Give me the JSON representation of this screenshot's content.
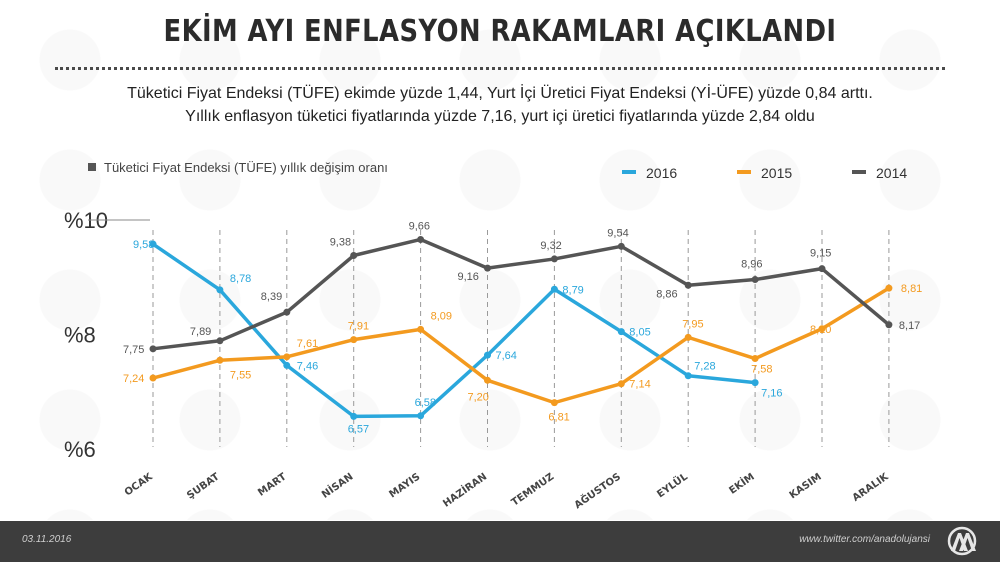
{
  "header": {
    "title": "EKİM AYI ENFLASYON RAKAMLARI AÇIKLANDI",
    "subtitle_line1": "Tüketici Fiyat Endeksi (TÜFE) ekimde yüzde 1,44, Yurt İçi Üretici Fiyat Endeksi (Yİ-ÜFE) yüzde 0,84 arttı.",
    "subtitle_line2": "Yıllık enflasyon tüketici fiyatlarında yüzde 7,16, yurt içi üretici fiyatlarında yüzde 2,84 oldu"
  },
  "footer": {
    "date": "03.11.2016",
    "url": "www.twitter.com/anadolujansi",
    "logo_icon": "aa-logo-icon"
  },
  "chart_data": {
    "type": "line",
    "title": "",
    "legend_caption": "Tüketici Fiyat Endeksi (TÜFE) yıllık değişim oranı",
    "legend_placement": "top",
    "categories": [
      "OCAK",
      "ŞUBAT",
      "MART",
      "NİSAN",
      "MAYIS",
      "HAZİRAN",
      "TEMMUZ",
      "AĞUSTOS",
      "EYLÜL",
      "EKİM",
      "KASIM",
      "ARALIK"
    ],
    "ylim": [
      6,
      10
    ],
    "yticks": [
      {
        "value": 10,
        "label": "%10"
      },
      {
        "value": 8,
        "label": "%8"
      },
      {
        "value": 6,
        "label": "%6"
      }
    ],
    "grid": "vertical-dashed",
    "series": [
      {
        "name": "2016",
        "color": "#2aa7dc",
        "values": [
          9.58,
          8.78,
          7.46,
          6.57,
          6.58,
          7.64,
          8.79,
          8.05,
          7.28,
          7.16,
          null,
          null
        ],
        "labels": [
          "9,58",
          "8,78",
          "7,46",
          "6,57",
          "6,58",
          "7,64",
          "8,79",
          "8,05",
          "7,28",
          "7,16",
          "",
          ""
        ]
      },
      {
        "name": "2015",
        "color": "#f39a1f",
        "values": [
          7.24,
          7.55,
          7.61,
          7.91,
          8.09,
          7.2,
          6.81,
          7.14,
          7.95,
          7.58,
          8.1,
          8.81
        ],
        "labels": [
          "7,24",
          "7,55",
          "7,61",
          "7,91",
          "8,09",
          "7,20",
          "6,81",
          "7,14",
          "7,95",
          "7,58",
          "8,10",
          "8,81"
        ]
      },
      {
        "name": "2014",
        "color": "#555555",
        "values": [
          7.75,
          7.89,
          8.39,
          9.38,
          9.66,
          9.16,
          9.32,
          9.54,
          8.86,
          8.96,
          9.15,
          8.17
        ],
        "labels": [
          "7,75",
          "7,89",
          "8,39",
          "9,38",
          "9,66",
          "9,16",
          "9,32",
          "9,54",
          "8,86",
          "8,96",
          "9,15",
          "8,17"
        ]
      }
    ]
  }
}
